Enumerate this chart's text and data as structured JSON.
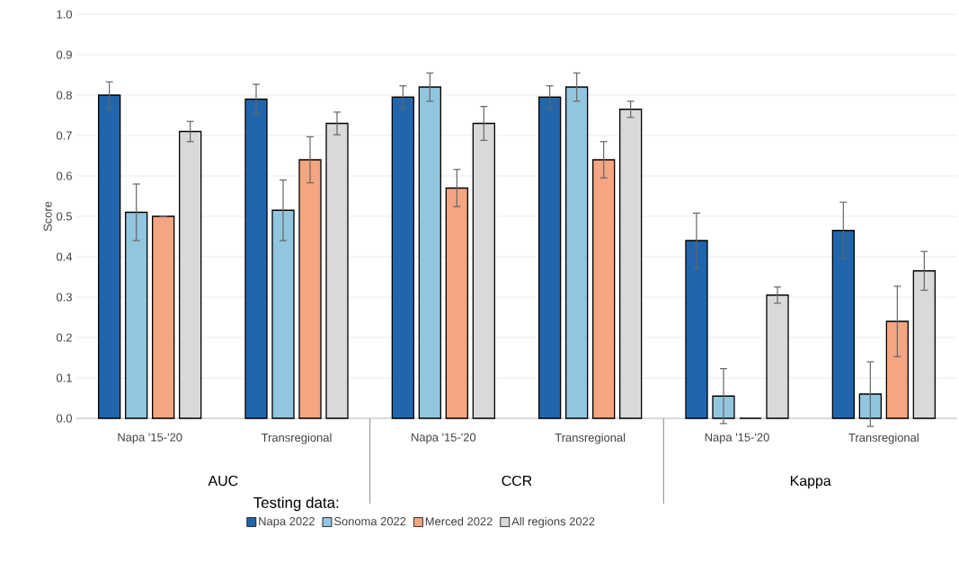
{
  "chart_data": {
    "type": "bar",
    "ylabel": "Score",
    "legend_title": "Testing data:",
    "legend": "bottom",
    "grid": "y",
    "categories": [
      "Napa '15-'20",
      "Transregional",
      "Napa '15-'20",
      "Transregional",
      "Napa '15-'20",
      "Transregional"
    ],
    "annotations": [
      "AUC",
      "CCR",
      "Kappa"
    ],
    "ylim": [
      0,
      1
    ],
    "yticks": [
      {
        "value": 0,
        "label": "0.0"
      },
      {
        "value": 0.1,
        "label": "0.1"
      },
      {
        "value": 0.2,
        "label": "0.2"
      },
      {
        "value": 0.3,
        "label": "0.3"
      },
      {
        "value": 0.4,
        "label": "0.4"
      },
      {
        "value": 0.5,
        "label": "0.5"
      },
      {
        "value": 0.6,
        "label": "0.6"
      },
      {
        "value": 0.7,
        "label": "0.7"
      },
      {
        "value": 0.8,
        "label": "0.8"
      },
      {
        "value": 0.9,
        "label": "0.9"
      },
      {
        "value": 1,
        "label": "1.0"
      }
    ],
    "series": [
      {
        "name": "Napa 2022",
        "color": "#2166ac",
        "values": [
          0.8,
          0.79,
          0.795,
          0.795,
          0.44,
          0.465
        ],
        "errors": [
          0.033,
          0.037,
          0.028,
          0.028,
          0.068,
          0.07
        ]
      },
      {
        "name": "Sonoma 2022",
        "color": "#92c5de",
        "values": [
          0.51,
          0.515,
          0.82,
          0.82,
          0.055,
          0.06
        ],
        "errors": [
          0.07,
          0.075,
          0.035,
          0.035,
          0.068,
          0.08
        ]
      },
      {
        "name": "Merced 2022",
        "color": "#f4a582",
        "values": [
          0.5,
          0.64,
          0.57,
          0.64,
          0,
          0.24
        ],
        "errors": [
          0,
          0.057,
          0.046,
          0.045,
          null,
          0.087
        ]
      },
      {
        "name": "All regions 2022",
        "color": "#d9d9d9",
        "values": [
          0.71,
          0.73,
          0.73,
          0.765,
          0.305,
          0.365
        ],
        "errors": [
          0.025,
          0.028,
          0.042,
          0.02,
          0.02,
          0.048
        ]
      }
    ]
  }
}
